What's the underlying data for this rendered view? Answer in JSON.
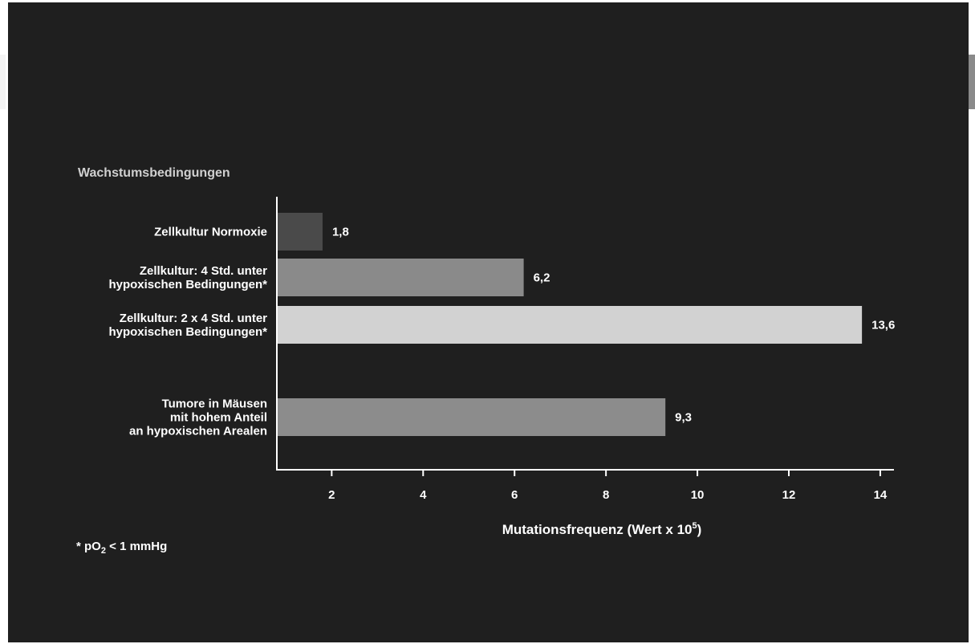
{
  "chart_data": {
    "type": "bar",
    "orientation": "horizontal",
    "y_group_label": "Wachstumsbedingungen",
    "categories": [
      [
        "Zellkultur Normoxie"
      ],
      [
        "Zellkultur: 4 Std. unter",
        "hypoxischen Bedingungen*"
      ],
      [
        "Zellkultur: 2 x 4 Std. unter",
        "hypoxischen Bedingungen*"
      ],
      [
        "Tumore in Mäusen",
        "mit hohem Anteil",
        "an hypoxischen Arealen"
      ]
    ],
    "values": [
      1.8,
      6.2,
      13.6,
      9.3
    ],
    "value_labels": [
      "1,8",
      "6,2",
      "13,6",
      "9,3"
    ],
    "bar_colors": [
      "#4a4a4a",
      "#8a8a8a",
      "#d2d2d2",
      "#8c8c8c"
    ],
    "xlabel": "Mutationsfrequenz (Wert x 10",
    "xlabel_superscript": "5",
    "xlabel_suffix": ")",
    "xlim": [
      0.8,
      14.3
    ],
    "xticks": [
      2,
      4,
      6,
      8,
      10,
      12,
      14
    ],
    "xtick_labels": [
      "2",
      "4",
      "6",
      "8",
      "10",
      "12",
      "14"
    ],
    "grid": false,
    "legend": "none"
  },
  "footnote": {
    "prefix": "* pO",
    "subscript": "2",
    "suffix": " < 1 mmHg"
  }
}
